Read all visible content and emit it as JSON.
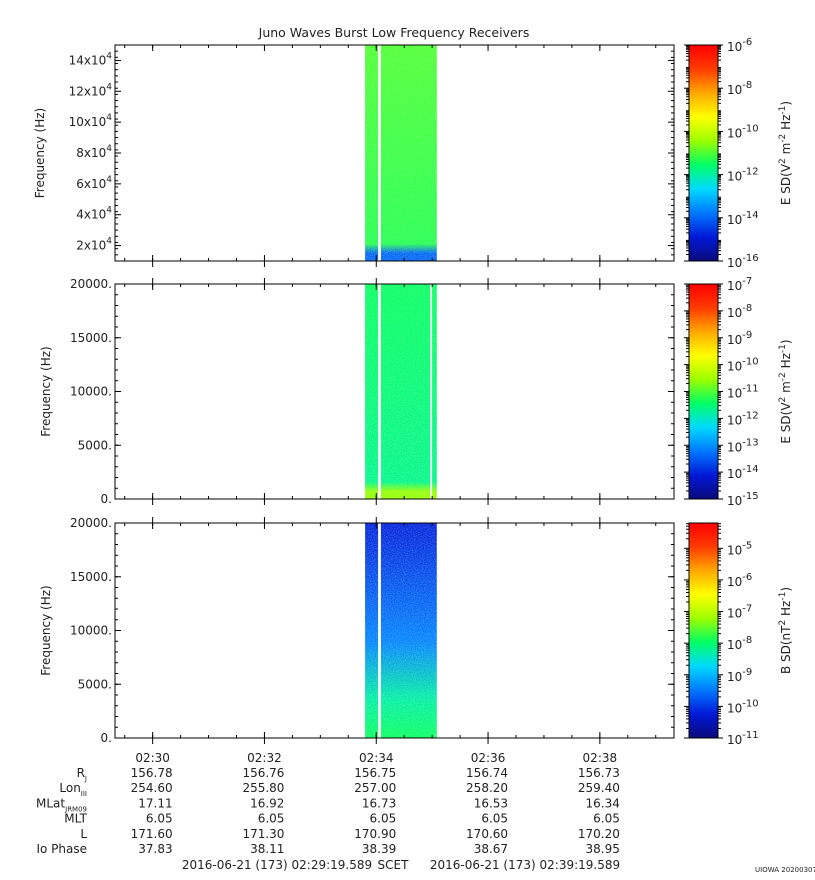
{
  "title": "Juno Waves Burst Low Frequency Receivers",
  "colors": {
    "background": "#ffffff",
    "frame": "#000000",
    "colormap": [
      "#0a0a7a",
      "#0019d8",
      "#0078ff",
      "#00d9ff",
      "#00ff66",
      "#9cff00",
      "#ffff00",
      "#ffa800",
      "#ff3b00",
      "#ff0000"
    ]
  },
  "chart_data": [
    {
      "type": "heatmap",
      "panel": "E field high band",
      "ylabel": "Frequency (Hz)",
      "yticks": [
        {
          "mant": "2",
          "val": 20000
        },
        {
          "mant": "4",
          "val": 40000
        },
        {
          "mant": "6",
          "val": 60000
        },
        {
          "mant": "8",
          "val": 80000
        },
        {
          "mant": "10",
          "val": 100000
        },
        {
          "mant": "12",
          "val": 120000
        },
        {
          "mant": "14",
          "val": 140000
        }
      ],
      "ytick_unit": "x10",
      "ytick_exp": "4",
      "ylim": [
        10000,
        150000
      ],
      "xlim": [
        "02:29:19.589",
        "02:39:19.589"
      ],
      "data_intervals": [
        [
          "02:33:48",
          "02:34:02"
        ],
        [
          "02:34:05",
          "02:35:05"
        ]
      ],
      "color_level_dominant": 0.5,
      "color_level_bottom_band": 0.2,
      "colorbar": {
        "label_main": "E SD",
        "label_units": "(V",
        "label_sup1": "2",
        "label_mid": " m",
        "label_sup2": "-2",
        "label_mid2": " Hz",
        "label_sup3": "-1",
        "label_close": ")",
        "scale": "log",
        "range": [
          -16,
          -6
        ],
        "ticks": [
          {
            "base": "10",
            "exp": "-6",
            "val": -6
          },
          {
            "base": "10",
            "exp": "-8",
            "val": -8
          },
          {
            "base": "10",
            "exp": "-10",
            "val": -10
          },
          {
            "base": "10",
            "exp": "-12",
            "val": -12
          },
          {
            "base": "10",
            "exp": "-14",
            "val": -14
          },
          {
            "base": "10",
            "exp": "-16",
            "val": -16
          }
        ]
      }
    },
    {
      "type": "heatmap",
      "panel": "E field low band",
      "ylabel": "Frequency (Hz)",
      "yticks": [
        {
          "label": "20000.",
          "val": 20000
        },
        {
          "label": "15000.",
          "val": 15000
        },
        {
          "label": "10000.",
          "val": 10000
        },
        {
          "label": "5000.",
          "val": 5000
        },
        {
          "label": "0.",
          "val": 0
        }
      ],
      "ylim": [
        0,
        20000
      ],
      "xlim": [
        "02:29:19.589",
        "02:39:19.589"
      ],
      "data_intervals": [
        [
          "02:33:48",
          "02:34:02"
        ],
        [
          "02:34:05",
          "02:34:58"
        ],
        [
          "02:35:00",
          "02:35:05"
        ]
      ],
      "color_level_dominant": 0.45,
      "color_level_bottom_band": 0.55,
      "colorbar": {
        "label_main": "E SD",
        "label_units": "(V",
        "label_sup1": "2",
        "label_mid": " m",
        "label_sup2": "-2",
        "label_mid2": " Hz",
        "label_sup3": "-1",
        "label_close": ")",
        "scale": "log",
        "range": [
          -15,
          -7
        ],
        "ticks": [
          {
            "base": "10",
            "exp": "-7",
            "val": -7
          },
          {
            "base": "10",
            "exp": "-8",
            "val": -8
          },
          {
            "base": "10",
            "exp": "-9",
            "val": -9
          },
          {
            "base": "10",
            "exp": "-10",
            "val": -10
          },
          {
            "base": "10",
            "exp": "-11",
            "val": -11
          },
          {
            "base": "10",
            "exp": "-12",
            "val": -12
          },
          {
            "base": "10",
            "exp": "-13",
            "val": -13
          },
          {
            "base": "10",
            "exp": "-14",
            "val": -14
          },
          {
            "base": "10",
            "exp": "-15",
            "val": -15
          }
        ]
      }
    },
    {
      "type": "heatmap",
      "panel": "B field",
      "ylabel": "Frequency (Hz)",
      "yticks": [
        {
          "label": "20000.",
          "val": 20000
        },
        {
          "label": "15000.",
          "val": 15000
        },
        {
          "label": "10000.",
          "val": 10000
        },
        {
          "label": "5000.",
          "val": 5000
        },
        {
          "label": "0.",
          "val": 0
        }
      ],
      "ylim": [
        0,
        20000
      ],
      "xlim": [
        "02:29:19.589",
        "02:39:19.589"
      ],
      "data_intervals": [
        [
          "02:33:48",
          "02:34:02"
        ],
        [
          "02:34:05",
          "02:35:05"
        ]
      ],
      "color_level_top": 0.12,
      "color_level_bottom": 0.45,
      "colorbar": {
        "label_main": "B SD",
        "label_units": "(nT",
        "label_sup1": "2",
        "label_mid": " Hz",
        "label_sup2": "-1",
        "label_mid2": "",
        "label_sup3": "",
        "label_close": ")",
        "scale": "log",
        "range": [
          -11,
          -4.2
        ],
        "ticks": [
          {
            "base": "10",
            "exp": "-5",
            "val": -5
          },
          {
            "base": "10",
            "exp": "-6",
            "val": -6
          },
          {
            "base": "10",
            "exp": "-7",
            "val": -7
          },
          {
            "base": "10",
            "exp": "-8",
            "val": -8
          },
          {
            "base": "10",
            "exp": "-9",
            "val": -9
          },
          {
            "base": "10",
            "exp": "-10",
            "val": -10
          },
          {
            "base": "10",
            "exp": "-11",
            "val": -11
          }
        ]
      }
    }
  ],
  "x_axis": {
    "range_seconds": [
      0,
      600
    ],
    "ticks": [
      {
        "label": "02:30",
        "sec": 40.411
      },
      {
        "label": "02:32",
        "sec": 160.411
      },
      {
        "label": "02:34",
        "sec": 280.411
      },
      {
        "label": "02:36",
        "sec": 400.411
      },
      {
        "label": "02:38",
        "sec": 520.411
      }
    ],
    "minor_tick_seconds": 30
  },
  "ephemeris": {
    "rows": [
      {
        "label": "R",
        "sub": "J",
        "values": [
          "156.78",
          "156.76",
          "156.75",
          "156.74",
          "156.73"
        ]
      },
      {
        "label": "Lon",
        "sub": "III",
        "values": [
          "254.60",
          "255.80",
          "257.00",
          "258.20",
          "259.40"
        ]
      },
      {
        "label": "MLat",
        "sub": "JRM09",
        "values": [
          "17.11",
          "16.92",
          "16.73",
          "16.53",
          "16.34"
        ]
      },
      {
        "label": "MLT",
        "sub": "",
        "values": [
          "6.05",
          "6.05",
          "6.05",
          "6.05",
          "6.05"
        ]
      },
      {
        "label": "L",
        "sub": "",
        "values": [
          "171.60",
          "171.30",
          "170.90",
          "170.60",
          "170.20"
        ]
      },
      {
        "label": "Io Phase",
        "sub": "",
        "values": [
          "37.83",
          "38.11",
          "38.39",
          "38.67",
          "38.95"
        ]
      }
    ]
  },
  "footer": {
    "start": "2016-06-21 (173) 02:29:19.589",
    "scet": "SCET",
    "end": "2016-06-21 (173) 02:39:19.589",
    "stamp": "UIOWA 20200307"
  }
}
